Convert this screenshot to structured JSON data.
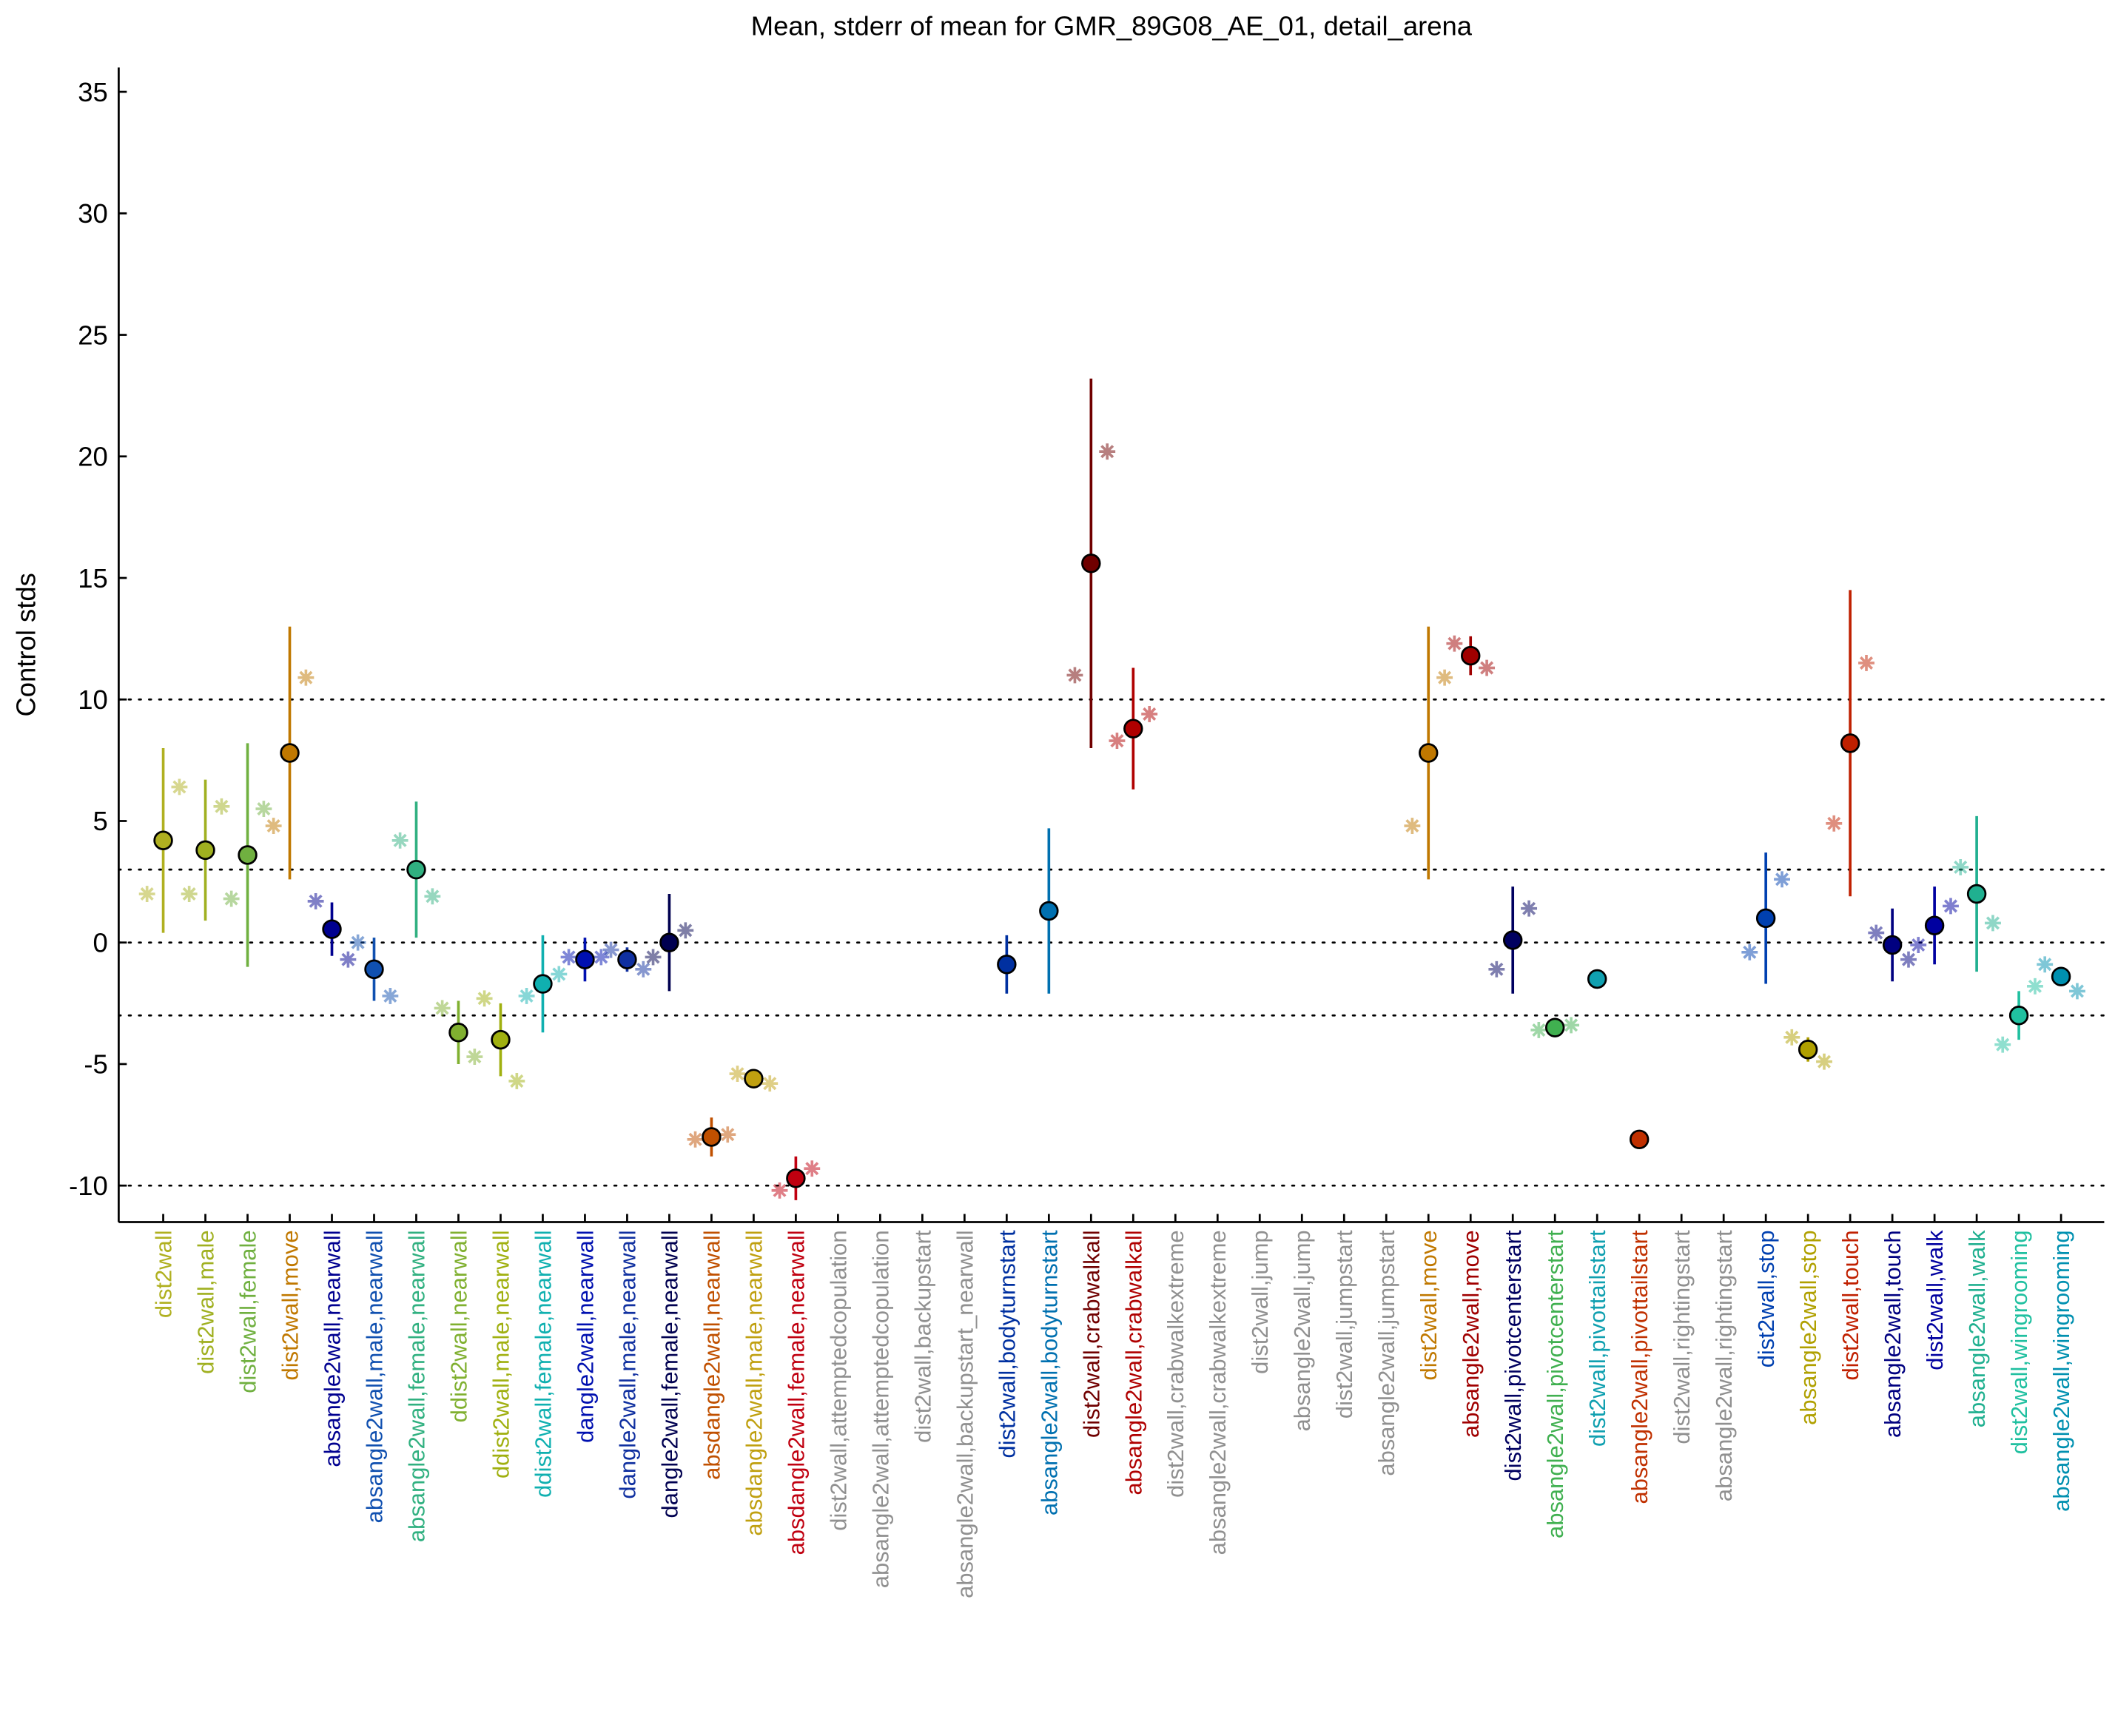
{
  "chart_data": {
    "type": "errorbar",
    "title": "Mean, stderr of mean for GMR_89G08_AE_01, detail_arena",
    "ylabel": "Control stds",
    "categories": [
      "dist2wall",
      "dist2wall,male",
      "dist2wall,female",
      "dist2wall,move",
      "absangle2wall,nearwall",
      "absangle2wall,male,nearwall",
      "absangle2wall,female,nearwall",
      "ddist2wall,nearwall",
      "ddist2wall,male,nearwall",
      "ddist2wall,female,nearwall",
      "dangle2wall,nearwall",
      "dangle2wall,male,nearwall",
      "dangle2wall,female,nearwall",
      "absdangle2wall,nearwall",
      "absdangle2wall,male,nearwall",
      "absdangle2wall,female,nearwall",
      "dist2wall,attemptedcopulation",
      "absangle2wall,attemptedcopulation",
      "dist2wall,backupstart",
      "absangle2wall,backupstart_nearwall",
      "dist2wall,bodyturnstart",
      "absangle2wall,bodyturnstart",
      "dist2wall,crabwalkall",
      "absangle2wall,crabwalkall",
      "dist2wall,crabwalkextreme",
      "absangle2wall,crabwalkextreme",
      "dist2wall,jump",
      "absangle2wall,jump",
      "dist2wall,jumpstart",
      "absangle2wall,jumpstart",
      "dist2wall,move",
      "absangle2wall,move",
      "dist2wall,pivotcenterstart",
      "absangle2wall,pivotcenterstart",
      "dist2wall,pivottailstart",
      "absangle2wall,pivottailstart",
      "dist2wall,rightingstart",
      "absangle2wall,rightingstart",
      "dist2wall,stop",
      "absangle2wall,stop",
      "dist2wall,touch",
      "absangle2wall,touch",
      "dist2wall,walk",
      "absangle2wall,walk",
      "dist2wall,wingrooming",
      "absangle2wall,wingrooming"
    ],
    "colors": [
      "#b0b020",
      "#a0b020",
      "#70b040",
      "#c07800",
      "#000090",
      "#1050b0",
      "#30b080",
      "#80b030",
      "#a0b010",
      "#10b0b0",
      "#0010b0",
      "#1030a0",
      "#000050",
      "#c05000",
      "#c0a010",
      "#c00010",
      "#909090",
      "#909090",
      "#909090",
      "#909090",
      "#0030a0",
      "#0070b0",
      "#700000",
      "#b00000",
      "#909090",
      "#909090",
      "#909090",
      "#909090",
      "#909090",
      "#909090",
      "#c07800",
      "#a00000",
      "#000060",
      "#40b050",
      "#10a0b0",
      "#c03000",
      "#909090",
      "#909090",
      "#0040b0",
      "#b0a000",
      "#c02000",
      "#000080",
      "#0000a0",
      "#20b090",
      "#20c0a0",
      "#0090b0"
    ],
    "means": [
      4.2,
      3.8,
      3.6,
      7.8,
      0.55,
      -1.1,
      3.0,
      -3.7,
      -4.0,
      -1.7,
      -0.7,
      -0.7,
      0.0,
      -8.0,
      -5.6,
      -9.7,
      null,
      null,
      null,
      null,
      -0.9,
      1.3,
      15.6,
      8.8,
      null,
      null,
      null,
      null,
      null,
      null,
      7.8,
      11.8,
      0.1,
      -3.5,
      -1.5,
      -8.1,
      null,
      null,
      1.0,
      -4.4,
      8.2,
      -0.1,
      0.7,
      2.0,
      -3.0,
      -1.4
    ],
    "errors": [
      3.8,
      2.9,
      4.6,
      5.2,
      1.1,
      1.3,
      2.8,
      1.3,
      1.5,
      2.0,
      0.9,
      0.5,
      2.0,
      0.8,
      0.4,
      0.9,
      null,
      null,
      null,
      null,
      1.2,
      3.4,
      7.6,
      2.5,
      null,
      null,
      null,
      null,
      null,
      null,
      5.2,
      0.8,
      2.2,
      0.4,
      null,
      null,
      null,
      null,
      2.7,
      0.5,
      6.3,
      1.5,
      1.6,
      3.2,
      1.0,
      0.3
    ],
    "left_stars": [
      2.0,
      2.0,
      1.8,
      4.8,
      1.7,
      0.0,
      4.2,
      -2.7,
      -2.3,
      -2.2,
      -0.6,
      -0.3,
      -0.6,
      -8.1,
      -5.4,
      -10.2,
      null,
      null,
      null,
      null,
      null,
      null,
      11.0,
      8.3,
      null,
      null,
      null,
      null,
      null,
      null,
      4.8,
      12.3,
      -1.1,
      -3.6,
      null,
      null,
      null,
      null,
      -0.4,
      -3.9,
      4.9,
      0.4,
      -0.1,
      3.1,
      -4.2,
      -0.9
    ],
    "right_stars": [
      6.4,
      5.6,
      5.5,
      10.9,
      -0.7,
      -2.2,
      1.9,
      -4.7,
      -5.7,
      -1.3,
      -0.6,
      -1.1,
      0.5,
      -7.9,
      -5.8,
      -9.3,
      null,
      null,
      null,
      null,
      null,
      null,
      20.2,
      9.4,
      null,
      null,
      null,
      null,
      null,
      null,
      10.9,
      11.3,
      1.4,
      -3.4,
      null,
      null,
      null,
      null,
      2.6,
      -4.9,
      11.5,
      -0.7,
      1.5,
      0.8,
      -1.8,
      -2.0
    ],
    "ylim": [
      -11.5,
      36
    ],
    "yticks": [
      -10,
      -5,
      0,
      5,
      10,
      15,
      20,
      25,
      30,
      35
    ],
    "reference_lines": [
      -10,
      -3,
      0,
      3,
      10
    ]
  }
}
